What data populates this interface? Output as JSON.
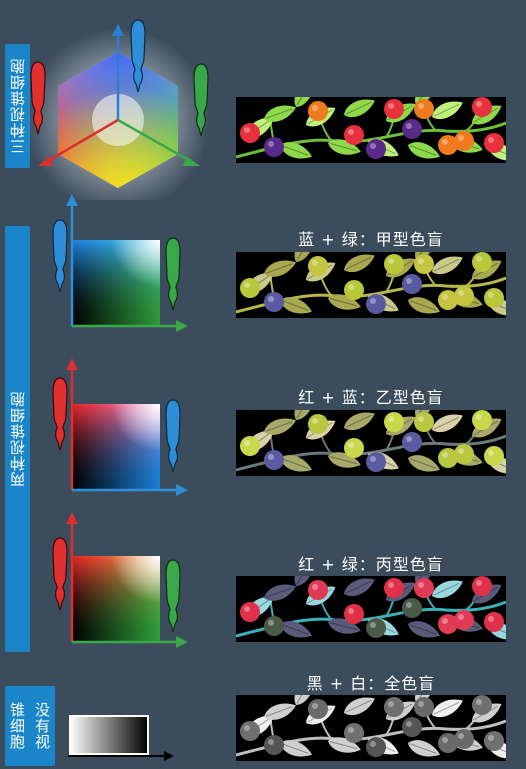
{
  "side_labels": {
    "three": "三种视锥细胞",
    "two": "两种视锥细胞",
    "none_line1": "没有视",
    "none_line2": "锥细胞"
  },
  "captions": [
    "蓝 + 绿：甲型色盲",
    "红 + 蓝：乙型色盲",
    "红 + 绿：丙型色盲",
    "黑 + 白：全色盲"
  ],
  "colors": {
    "label_bg": "#1a86c9",
    "background": "#3b4c5d",
    "cone_red": "#e03030",
    "cone_green": "#3aa84a",
    "cone_blue": "#2f8fd0"
  }
}
